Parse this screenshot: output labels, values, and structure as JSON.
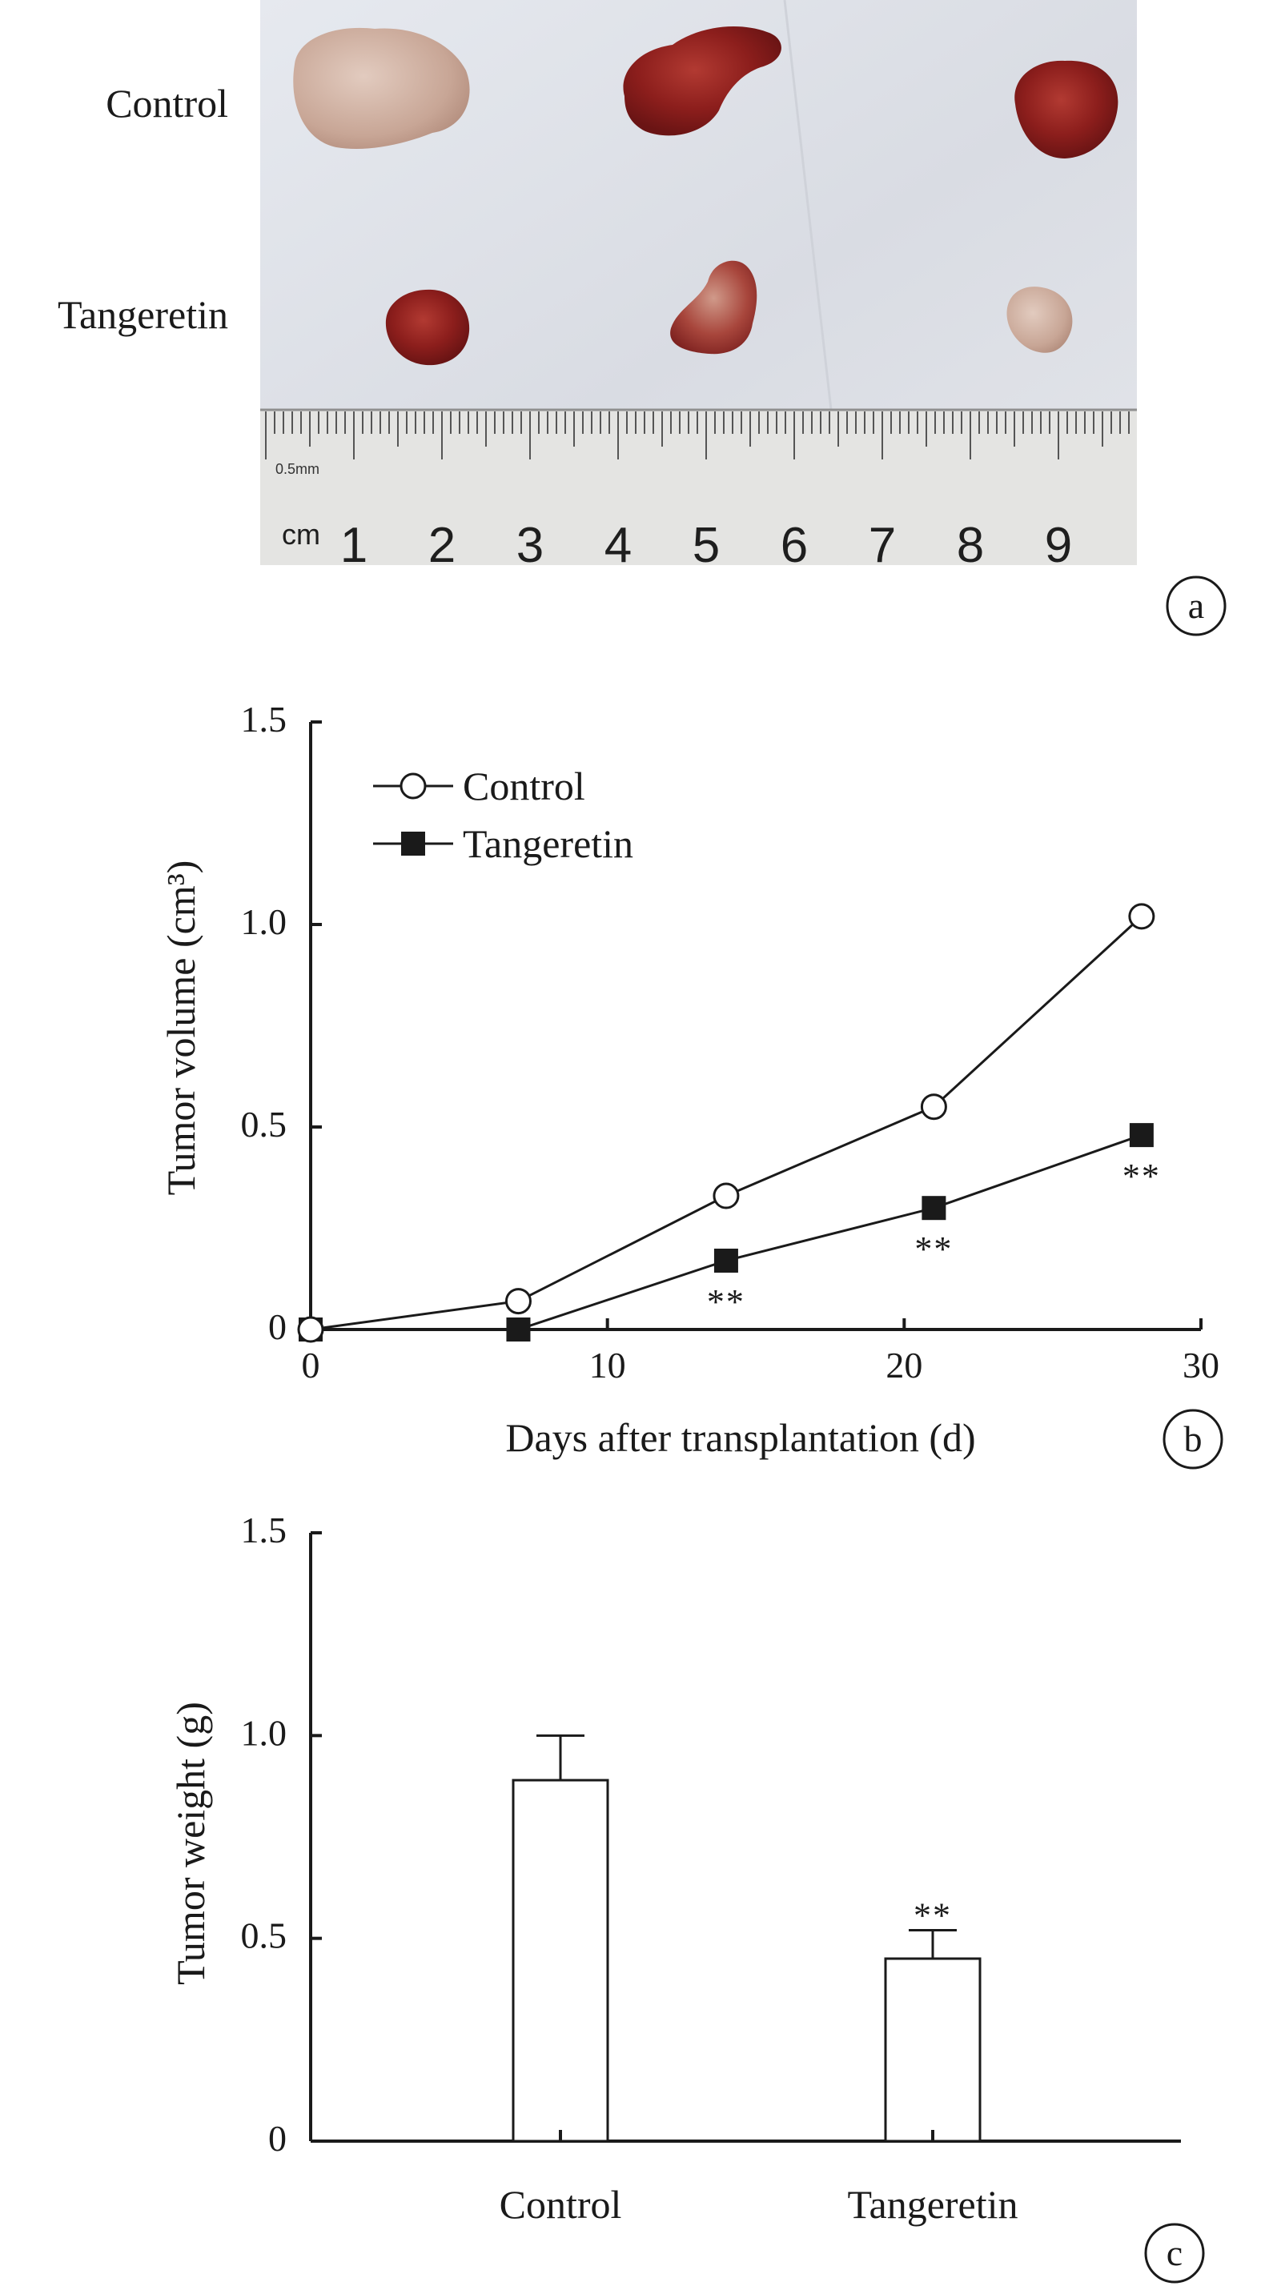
{
  "panel_a": {
    "row_labels": [
      "Control",
      "Tangeretin"
    ],
    "ruler": {
      "unit_label": "cm",
      "small_label": "0.5mm",
      "numbers": [
        "1",
        "2",
        "3",
        "4",
        "5",
        "6",
        "7",
        "8",
        "9"
      ]
    },
    "panel_letter": "a",
    "colors": {
      "paper": "#dcdfe6",
      "ruler": "#e4e4e2",
      "tumor_dark": "#8c1e1c",
      "tumor_pale": "#cdb0a2"
    }
  },
  "chart_data": [
    {
      "type": "line",
      "panel_letter": "b",
      "xlabel": "Days after transplantation (d)",
      "ylabel": "Tumor volume (cm³)",
      "xlim": [
        0,
        30
      ],
      "ylim": [
        0,
        1.5
      ],
      "x_ticks": [
        "0",
        "10",
        "20",
        "30"
      ],
      "y_ticks": [
        "0",
        "0.5",
        "1.0",
        "1.5"
      ],
      "legend_position": "top-left",
      "series": [
        {
          "name": "Control",
          "marker": "open-circle",
          "points": [
            [
              0,
              0
            ],
            [
              7,
              0.07
            ],
            [
              14,
              0.33
            ],
            [
              21,
              0.55
            ],
            [
              28,
              1.02
            ]
          ]
        },
        {
          "name": "Tangeretin",
          "marker": "filled-square",
          "points": [
            [
              0,
              0
            ],
            [
              7,
              0
            ],
            [
              14,
              0.17
            ],
            [
              21,
              0.3
            ],
            [
              28,
              0.48
            ]
          ]
        }
      ],
      "annotations": [
        {
          "x": 14,
          "y": 0.17,
          "text": "**"
        },
        {
          "x": 21,
          "y": 0.3,
          "text": "**"
        },
        {
          "x": 28,
          "y": 0.48,
          "text": "**"
        }
      ]
    },
    {
      "type": "bar",
      "panel_letter": "c",
      "ylabel": "Tumor weight (g)",
      "ylim": [
        0,
        1.5
      ],
      "y_ticks": [
        "0",
        "0.5",
        "1.0",
        "1.5"
      ],
      "categories": [
        "Control",
        "Tangeretin"
      ],
      "values": [
        0.89,
        0.45
      ],
      "errors": [
        0.11,
        0.07
      ],
      "annotations": [
        {
          "category": "Tangeretin",
          "text": "**"
        }
      ]
    }
  ]
}
